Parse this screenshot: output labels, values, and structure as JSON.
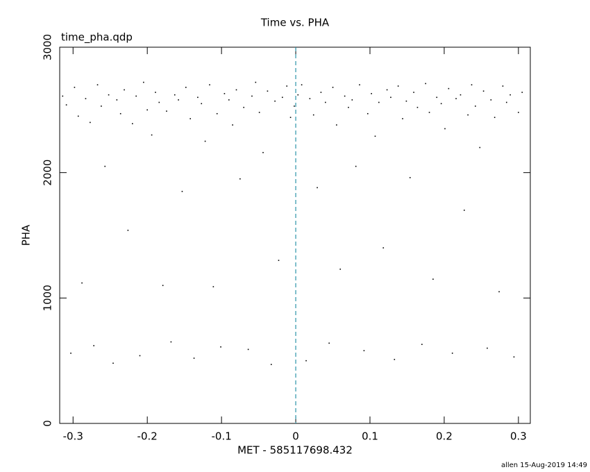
{
  "chart_data": {
    "type": "scatter",
    "title": "Time vs. PHA",
    "annotation": "time_pha.qdp",
    "footer": "allen 15-Aug-2019 14:49",
    "x_label": "MET - 585117698.432",
    "y_label": "PHA",
    "color": "#000000",
    "vline_x": 0,
    "vline_color": "#2a93a8",
    "xlim": [
      -0.318,
      0.316
    ],
    "ylim": [
      0,
      3000
    ],
    "xticks": [
      -0.3,
      -0.2,
      -0.1,
      0,
      0.1,
      0.2,
      0.3
    ],
    "yticks": [
      0,
      1000,
      2000,
      3000
    ],
    "x": [
      -0.314,
      -0.309,
      -0.303,
      -0.298,
      -0.293,
      -0.288,
      -0.283,
      -0.277,
      -0.272,
      -0.267,
      -0.262,
      -0.257,
      -0.252,
      -0.246,
      -0.241,
      -0.236,
      -0.231,
      -0.226,
      -0.22,
      -0.215,
      -0.21,
      -0.205,
      -0.2,
      -0.194,
      -0.189,
      -0.184,
      -0.179,
      -0.174,
      -0.168,
      -0.163,
      -0.158,
      -0.153,
      -0.148,
      -0.142,
      -0.137,
      -0.132,
      -0.127,
      -0.122,
      -0.116,
      -0.111,
      -0.106,
      -0.101,
      -0.096,
      -0.09,
      -0.085,
      -0.08,
      -0.075,
      -0.07,
      -0.064,
      -0.059,
      -0.054,
      -0.049,
      -0.044,
      -0.038,
      -0.033,
      -0.028,
      -0.023,
      -0.018,
      -0.012,
      -0.007,
      -0.002,
      0.003,
      0.008,
      0.014,
      0.019,
      0.024,
      0.029,
      0.034,
      0.04,
      0.045,
      0.05,
      0.055,
      0.06,
      0.066,
      0.071,
      0.076,
      0.081,
      0.086,
      0.092,
      0.097,
      0.102,
      0.107,
      0.112,
      0.118,
      0.123,
      0.128,
      0.133,
      0.138,
      0.144,
      0.149,
      0.154,
      0.159,
      0.164,
      0.17,
      0.175,
      0.18,
      0.185,
      0.19,
      0.196,
      0.201,
      0.206,
      0.211,
      0.216,
      0.222,
      0.227,
      0.232,
      0.237,
      0.242,
      0.248,
      0.253,
      0.258,
      0.263,
      0.268,
      0.274,
      0.279,
      0.284,
      0.289,
      0.294,
      0.3,
      0.305
    ],
    "values": [
      2610,
      2540,
      560,
      2680,
      2450,
      1120,
      2590,
      2400,
      620,
      2700,
      2530,
      2050,
      2620,
      480,
      2580,
      2470,
      2660,
      1540,
      2390,
      2610,
      540,
      2720,
      2500,
      2300,
      2640,
      2560,
      1100,
      2490,
      650,
      2620,
      2580,
      1850,
      2680,
      2430,
      520,
      2600,
      2550,
      2250,
      2700,
      1090,
      2470,
      610,
      2630,
      2580,
      2380,
      2660,
      1950,
      2520,
      590,
      2610,
      2720,
      2480,
      2160,
      2650,
      470,
      2570,
      1300,
      2600,
      2690,
      2440,
      2530,
      2620,
      2700,
      500,
      2590,
      2460,
      1880,
      2640,
      2560,
      640,
      2680,
      2380,
      1230,
      2610,
      2520,
      2580,
      2050,
      2700,
      580,
      2470,
      2630,
      2290,
      2560,
      1400,
      2660,
      2600,
      510,
      2690,
      2430,
      2570,
      1960,
      2640,
      2520,
      630,
      2710,
      2480,
      1150,
      2600,
      2550,
      2350,
      2670,
      560,
      2590,
      2620,
      1700,
      2460,
      2700,
      2530,
      2200,
      2650,
      600,
      2580,
      2440,
      1050,
      2690,
      2560,
      2620,
      530,
      2480,
      2640
    ]
  }
}
